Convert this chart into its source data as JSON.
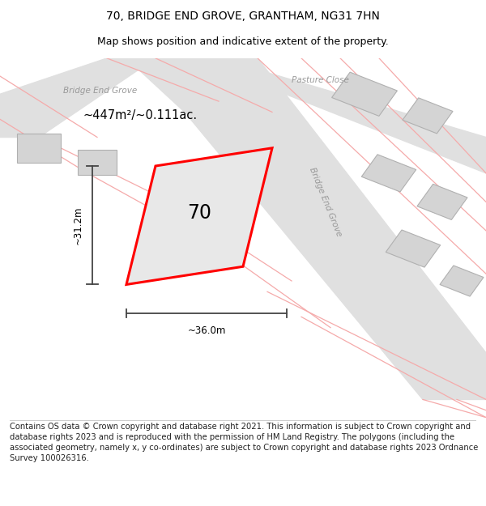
{
  "title": "70, BRIDGE END GROVE, GRANTHAM, NG31 7HN",
  "subtitle": "Map shows position and indicative extent of the property.",
  "footer": "Contains OS data © Crown copyright and database right 2021. This information is subject to Crown copyright and database rights 2023 and is reproduced with the permission of HM Land Registry. The polygons (including the associated geometry, namely x, y co-ordinates) are subject to Crown copyright and database rights 2023 Ordnance Survey 100026316.",
  "plot_number": "70",
  "area_text": "~447m²/~0.111ac.",
  "dim_width": "~36.0m",
  "dim_height": "~31.2m",
  "title_fontsize": 10,
  "subtitle_fontsize": 9,
  "footer_fontsize": 7.2,
  "building_color": "#d4d4d4",
  "building_outline_color": "#b0b0b0",
  "road_color": "#e0e0e0",
  "map_background": "#ebebeb",
  "plot_fill_color": "#e8e8e8",
  "plot_border_color": "#ff0000",
  "pink_line_color": "#f5aaaa",
  "dim_line_color": "#444444",
  "street_label_color": "#999999",
  "label_bridge_end": "Bridge End Grove",
  "label_pasture": "Pasture Close",
  "label_bridge_end_diag": "Bridge End Grove"
}
